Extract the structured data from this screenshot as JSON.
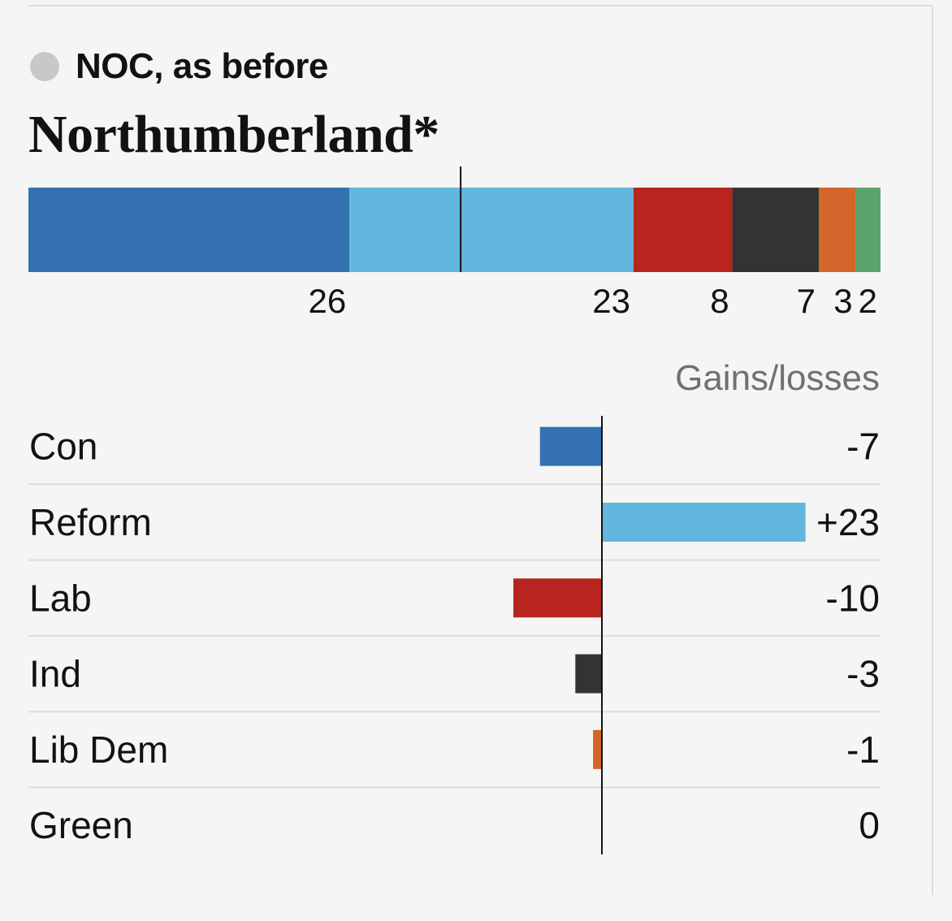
{
  "status": {
    "label": "NOC, as before",
    "color": "#c8c8c8"
  },
  "council": {
    "title": "Northumberland*"
  },
  "chart_data": [
    {
      "type": "bar",
      "stacked": true,
      "orientation": "horizontal",
      "majority_marker": true,
      "segments": [
        {
          "party": "Con",
          "seats": 26,
          "color": "#3371b0"
        },
        {
          "party": "Reform",
          "seats": 23,
          "color": "#63b6de"
        },
        {
          "party": "Lab",
          "seats": 8,
          "color": "#b8241f"
        },
        {
          "party": "Ind",
          "seats": 7,
          "color": "#333333"
        },
        {
          "party": "Lib Dem",
          "seats": 3,
          "color": "#d3662a"
        },
        {
          "party": "Green",
          "seats": 2,
          "color": "#5aa56e"
        }
      ]
    },
    {
      "type": "bar",
      "orientation": "horizontal",
      "title": "Gains/losses",
      "zero_line": true,
      "rows": [
        {
          "party": "Con",
          "change": -7,
          "label": "-7",
          "color": "#3371b0"
        },
        {
          "party": "Reform",
          "change": 23,
          "label": "+23",
          "color": "#63b6de"
        },
        {
          "party": "Lab",
          "change": -10,
          "label": "-10",
          "color": "#b8241f"
        },
        {
          "party": "Ind",
          "change": -3,
          "label": "-3",
          "color": "#333333"
        },
        {
          "party": "Lib Dem",
          "change": -1,
          "label": "-1",
          "color": "#d3662a"
        },
        {
          "party": "Green",
          "change": 0,
          "label": "0",
          "color": "#5aa56e"
        }
      ]
    }
  ]
}
